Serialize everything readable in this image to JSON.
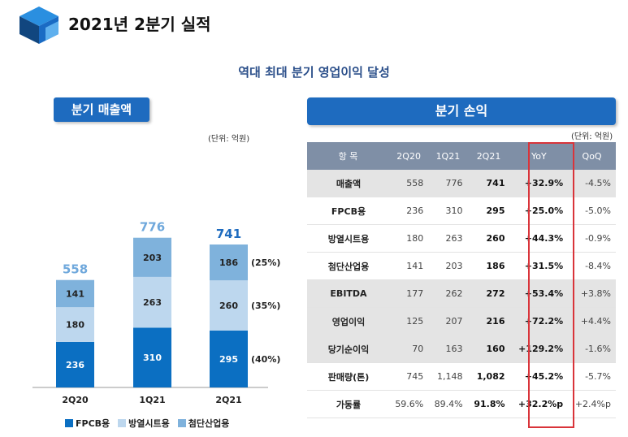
{
  "header": {
    "title": "2021년 2분기 실적",
    "subtitle": "역대 최대 분기 영업이익 달성",
    "colors": {
      "accent": "#1e6bbf",
      "yoy_highlight": "#d9343a"
    }
  },
  "left_panel": {
    "header": "분기 매출액",
    "unit": "(단위: 억원)",
    "chart_data": {
      "type": "bar",
      "stacked": true,
      "categories": [
        "2Q20",
        "1Q21",
        "2Q21"
      ],
      "totals": [
        558,
        776,
        741
      ],
      "series": [
        {
          "name": "FPCB용",
          "values": [
            236,
            310,
            295
          ],
          "color": "#0b6fc2"
        },
        {
          "name": "방열시트용",
          "values": [
            180,
            263,
            260
          ],
          "color": "#bdd7ee"
        },
        {
          "name": "첨단산업용",
          "values": [
            141,
            203,
            186
          ],
          "color": "#7fb2dc"
        }
      ],
      "share_labels": [
        "(40%)",
        "(35%)",
        "(25%)"
      ]
    }
  },
  "right_panel": {
    "header": "분기 손익",
    "unit": "(단위: 억원)",
    "columns": [
      "항  목",
      "2Q20",
      "1Q21",
      "2Q21",
      "YoY",
      "QoQ"
    ],
    "rows": [
      {
        "label": "매출액",
        "values": [
          "558",
          "776",
          "741",
          "+32.9%",
          "-4.5%"
        ],
        "shade": true
      },
      {
        "label": "FPCB용",
        "values": [
          "236",
          "310",
          "295",
          "+25.0%",
          "-5.0%"
        ],
        "shade": false
      },
      {
        "label": "방열시트용",
        "values": [
          "180",
          "263",
          "260",
          "+44.3%",
          "-0.9%"
        ],
        "shade": false
      },
      {
        "label": "첨단산업용",
        "values": [
          "141",
          "203",
          "186",
          "+31.5%",
          "-8.4%"
        ],
        "shade": false
      },
      {
        "label": "EBITDA",
        "values": [
          "177",
          "262",
          "272",
          "+53.4%",
          "+3.8%"
        ],
        "shade": true
      },
      {
        "label": "영업이익",
        "values": [
          "125",
          "207",
          "216",
          "+72.2%",
          "+4.4%"
        ],
        "shade": true
      },
      {
        "label": "당기순이익",
        "values": [
          "70",
          "163",
          "160",
          "+129.2%",
          "-1.6%"
        ],
        "shade": true
      },
      {
        "label": "판매량(톤)",
        "values": [
          "745",
          "1,148",
          "1,082",
          "+45.2%",
          "-5.7%"
        ],
        "shade": false
      },
      {
        "label": "가동률",
        "values": [
          "59.6%",
          "89.4%",
          "91.8%",
          "+32.2%p",
          "+2.4%p"
        ],
        "shade": false
      }
    ]
  }
}
